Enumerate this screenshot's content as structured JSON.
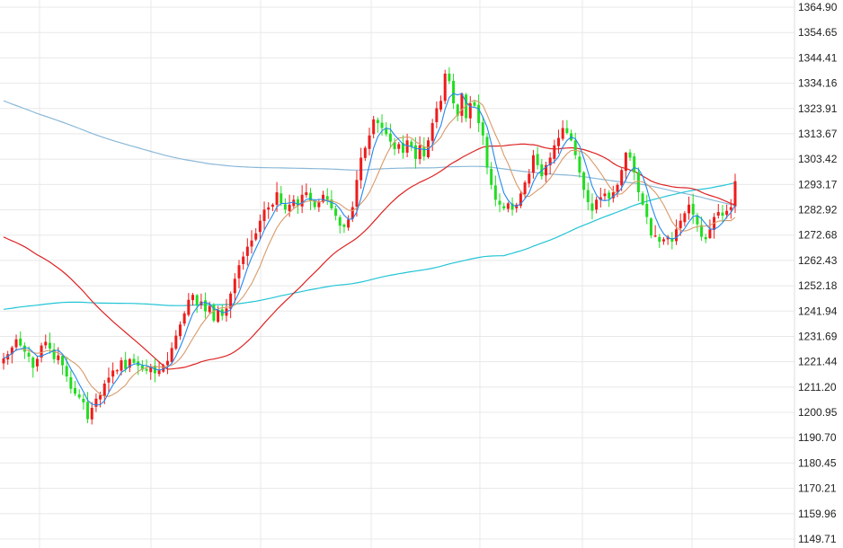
{
  "chart_data": {
    "type": "candlestick",
    "title": "",
    "xlabel": "",
    "ylabel": "",
    "ylim": [
      1149.71,
      1364.9
    ],
    "y_ticks": [
      "1364.90",
      "1354.65",
      "1344.41",
      "1334.16",
      "1323.91",
      "1313.67",
      "1303.42",
      "1293.17",
      "1282.92",
      "1272.68",
      "1262.43",
      "1252.18",
      "1241.94",
      "1231.69",
      "1221.44",
      "1211.20",
      "1200.95",
      "1190.70",
      "1180.45",
      "1170.21",
      "1159.96",
      "1149.71"
    ],
    "grid": true,
    "legend": "none",
    "colors": {
      "up": "#ee1c1c",
      "down": "#22dd22",
      "ma_fast": "#2288ee",
      "ma_mid": "#d89a6a",
      "ma_slow": "#dd2222",
      "ma_long": "#22c4d6",
      "ma_longest": "#8ab8d8",
      "grid": "#e8e8e8"
    },
    "close": [
      1222.8,
      1224.5,
      1227.2,
      1230.5,
      1228.0,
      1225.5,
      1223.5,
      1219.0,
      1222.6,
      1228.0,
      1229.5,
      1226.8,
      1222.5,
      1224.0,
      1220.0,
      1215.5,
      1210.5,
      1208.5,
      1207.0,
      1205.0,
      1198.2,
      1202.8,
      1206.5,
      1208.0,
      1212.6,
      1215.0,
      1217.9,
      1218.0,
      1222.0,
      1218.5,
      1222.5,
      1221.0,
      1219.8,
      1218.2,
      1217.8,
      1219.6,
      1216.8,
      1218.0,
      1220.0,
      1221.8,
      1227.0,
      1232.0,
      1236.5,
      1241.0,
      1246.5,
      1248.5,
      1244.5,
      1245.8,
      1241.8,
      1244.0,
      1238.0,
      1242.5,
      1240.0,
      1243.0,
      1249.0,
      1255.0,
      1260.5,
      1264.0,
      1268.0,
      1270.5,
      1273.4,
      1278.5,
      1283.0,
      1283.9,
      1285.0,
      1290.0,
      1285.5,
      1283.0,
      1285.0,
      1287.0,
      1284.5,
      1289.0,
      1290.0,
      1286.5,
      1284.0,
      1286.0,
      1289.0,
      1287.0,
      1283.5,
      1280.5,
      1276.5,
      1276.0,
      1279.0,
      1284.0,
      1295.0,
      1304.0,
      1308.0,
      1313.0,
      1319.5,
      1318.0,
      1316.0,
      1313.5,
      1310.5,
      1307.5,
      1309.5,
      1306.0,
      1311.0,
      1308.5,
      1303.5,
      1309.0,
      1304.5,
      1311.0,
      1318.0,
      1324.0,
      1327.0,
      1338.0,
      1335.0,
      1326.0,
      1321.0,
      1330.0,
      1320.0,
      1326.0,
      1325.0,
      1318.0,
      1313.0,
      1300.0,
      1293.0,
      1287.0,
      1285.0,
      1283.5,
      1285.5,
      1283.0,
      1285.0,
      1289.5,
      1294.0,
      1297.5,
      1305.0,
      1301.0,
      1296.5,
      1301.0,
      1304.0,
      1309.0,
      1312.0,
      1316.0,
      1314.0,
      1311.0,
      1305.0,
      1298.0,
      1291.0,
      1286.0,
      1282.5,
      1287.0,
      1288.0,
      1289.5,
      1287.5,
      1290.0,
      1293.0,
      1299.0,
      1306.0,
      1304.0,
      1298.0,
      1290.0,
      1285.0,
      1280.0,
      1272.5,
      1272.5,
      1270.0,
      1271.0,
      1272.0,
      1270.0,
      1275.0,
      1278.5,
      1281.5,
      1285.0,
      1281.0,
      1277.0,
      1272.0,
      1271.0,
      1275.0,
      1280.0,
      1282.0,
      1280.5,
      1282.5,
      1284.0,
      1294.5
    ]
  }
}
